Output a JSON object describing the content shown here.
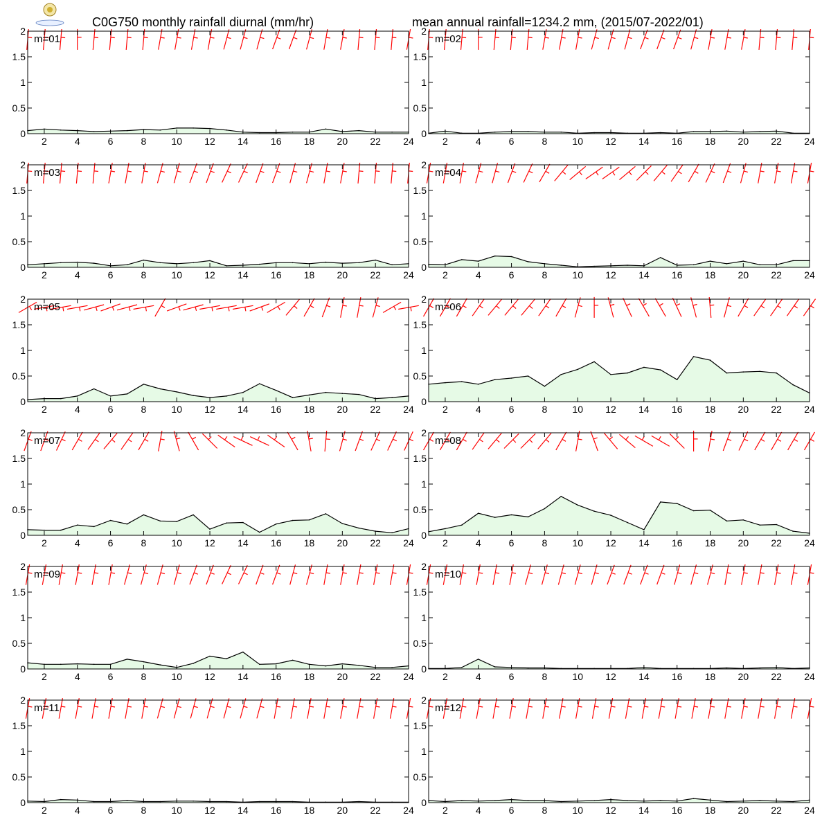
{
  "header": {
    "title_left": "C0G750 monthly rainfall diurnal (mm/hr)",
    "title_right": "mean annual rainfall=1234.2 mm, (2015/07-2022/01)"
  },
  "colors": {
    "fill": "#e6fae6",
    "line": "#000000",
    "wind": "#ff0000",
    "frame": "#000000"
  },
  "chart_data": {
    "type": "area",
    "layout": "6 rows x 2 columns of monthly panels",
    "x": [
      1,
      2,
      3,
      4,
      5,
      6,
      7,
      8,
      9,
      10,
      11,
      12,
      13,
      14,
      15,
      16,
      17,
      18,
      19,
      20,
      21,
      22,
      23,
      24
    ],
    "x_ticks": [
      2,
      4,
      6,
      8,
      10,
      12,
      14,
      16,
      18,
      20,
      22,
      24
    ],
    "y_ticks": [
      0,
      0.5,
      1,
      1.5,
      2
    ],
    "y_tick_labels": [
      "0",
      "0.5",
      "1",
      "1.5",
      "2"
    ],
    "xlim": [
      1,
      24
    ],
    "ylim": [
      0,
      2
    ],
    "grid": false,
    "panels": [
      {
        "label": "m=01",
        "values": [
          0.06,
          0.09,
          0.07,
          0.06,
          0.04,
          0.05,
          0.06,
          0.08,
          0.07,
          0.11,
          0.11,
          0.1,
          0.07,
          0.03,
          0.02,
          0.02,
          0.03,
          0.03,
          0.09,
          0.04,
          0.06,
          0.03,
          0.03,
          0.03
        ],
        "wind_angles": [
          -5,
          -5,
          -5,
          0,
          -5,
          -5,
          -5,
          -5,
          -10,
          -10,
          -10,
          -10,
          -15,
          -15,
          -15,
          -20,
          -20,
          -15,
          -10,
          -10,
          -5,
          -5,
          -5,
          -10
        ]
      },
      {
        "label": "m=02",
        "values": [
          0.01,
          0.05,
          0.01,
          0.01,
          0.03,
          0.04,
          0.04,
          0.03,
          0.03,
          0.01,
          0.02,
          0.02,
          0.01,
          0.01,
          0.02,
          0.01,
          0.04,
          0.04,
          0.05,
          0.03,
          0.04,
          0.05,
          0.01,
          0.01
        ],
        "wind_angles": [
          -5,
          -5,
          -5,
          0,
          -5,
          -5,
          -5,
          -10,
          -10,
          -10,
          -15,
          -15,
          -15,
          -20,
          -20,
          -20,
          -15,
          -10,
          -10,
          -10,
          -5,
          -5,
          -5,
          -5
        ]
      },
      {
        "label": "m=03",
        "values": [
          0.05,
          0.07,
          0.09,
          0.1,
          0.08,
          0.03,
          0.05,
          0.14,
          0.09,
          0.07,
          0.09,
          0.13,
          0.03,
          0.04,
          0.06,
          0.09,
          0.09,
          0.07,
          0.1,
          0.08,
          0.09,
          0.14,
          0.05,
          0.07
        ],
        "wind_angles": [
          -5,
          -5,
          -5,
          -5,
          -5,
          -10,
          -10,
          -10,
          -15,
          -15,
          -20,
          -20,
          -25,
          -25,
          -20,
          -20,
          -15,
          -15,
          -10,
          -10,
          -5,
          -5,
          -5,
          -5
        ]
      },
      {
        "label": "m=04",
        "values": [
          0.06,
          0.05,
          0.15,
          0.12,
          0.22,
          0.21,
          0.11,
          0.07,
          0.04,
          0.01,
          0.02,
          0.03,
          0.04,
          0.03,
          0.19,
          0.04,
          0.05,
          0.12,
          0.07,
          0.12,
          0.05,
          0.05,
          0.13,
          0.13
        ],
        "wind_angles": [
          -10,
          -10,
          -10,
          -15,
          -15,
          -20,
          -25,
          -30,
          -40,
          -50,
          -55,
          -55,
          -50,
          -45,
          -40,
          -35,
          -30,
          -25,
          -20,
          -15,
          -10,
          -10,
          -10,
          -10
        ]
      },
      {
        "label": "m=05",
        "values": [
          0.04,
          0.06,
          0.06,
          0.11,
          0.25,
          0.11,
          0.15,
          0.34,
          0.25,
          0.19,
          0.12,
          0.08,
          0.11,
          0.18,
          0.35,
          0.22,
          0.08,
          0.13,
          0.18,
          0.16,
          0.14,
          0.06,
          0.08,
          0.11
        ],
        "wind_angles": [
          -60,
          -80,
          -80,
          -80,
          -75,
          -70,
          -75,
          -80,
          -30,
          -70,
          -75,
          -80,
          -80,
          -80,
          -70,
          -60,
          -40,
          -30,
          -20,
          -10,
          -10,
          -15,
          -60,
          -80
        ]
      },
      {
        "label": "m=06",
        "values": [
          0.34,
          0.37,
          0.39,
          0.34,
          0.43,
          0.46,
          0.5,
          0.3,
          0.53,
          0.63,
          0.78,
          0.53,
          0.56,
          0.67,
          0.62,
          0.43,
          0.88,
          0.81,
          0.56,
          0.58,
          0.59,
          0.56,
          0.33,
          0.17
        ],
        "wind_angles": [
          -30,
          -30,
          -30,
          -35,
          -40,
          -40,
          -40,
          -35,
          -30,
          -15,
          0,
          15,
          25,
          30,
          30,
          25,
          15,
          5,
          -15,
          -30,
          -35,
          -35,
          -35,
          -35
        ]
      },
      {
        "label": "m=07",
        "values": [
          0.11,
          0.1,
          0.1,
          0.2,
          0.17,
          0.29,
          0.22,
          0.4,
          0.28,
          0.27,
          0.4,
          0.12,
          0.24,
          0.25,
          0.06,
          0.22,
          0.29,
          0.3,
          0.42,
          0.23,
          0.14,
          0.08,
          0.05,
          0.13
        ],
        "wind_angles": [
          -20,
          -20,
          -25,
          -30,
          -35,
          -40,
          -35,
          -30,
          -10,
          15,
          30,
          45,
          55,
          65,
          65,
          55,
          30,
          10,
          -5,
          -15,
          -20,
          -25,
          -25,
          -25
        ]
      },
      {
        "label": "m=08",
        "values": [
          0.07,
          0.13,
          0.2,
          0.43,
          0.35,
          0.4,
          0.36,
          0.52,
          0.76,
          0.59,
          0.47,
          0.39,
          0.25,
          0.11,
          0.65,
          0.62,
          0.48,
          0.49,
          0.28,
          0.3,
          0.2,
          0.21,
          0.08,
          0.04
        ],
        "wind_angles": [
          -30,
          -30,
          -30,
          -35,
          -40,
          -45,
          -45,
          -40,
          -30,
          -10,
          20,
          40,
          50,
          60,
          60,
          45,
          0,
          -10,
          -20,
          -25,
          -30,
          -30,
          -30,
          -30
        ]
      },
      {
        "label": "m=09",
        "values": [
          0.12,
          0.09,
          0.09,
          0.1,
          0.09,
          0.09,
          0.19,
          0.14,
          0.08,
          0.03,
          0.11,
          0.25,
          0.2,
          0.33,
          0.09,
          0.1,
          0.17,
          0.09,
          0.06,
          0.1,
          0.07,
          0.03,
          0.03,
          0.06
        ],
        "wind_angles": [
          -10,
          -10,
          -10,
          -10,
          -10,
          -10,
          -15,
          -15,
          -15,
          -15,
          -20,
          -20,
          -25,
          -25,
          -20,
          -20,
          -15,
          -15,
          -10,
          -10,
          -10,
          -10,
          -10,
          -10
        ]
      },
      {
        "label": "m=10",
        "values": [
          0.01,
          0.01,
          0.03,
          0.19,
          0.04,
          0.03,
          0.02,
          0.02,
          0.01,
          0.01,
          0.01,
          0.01,
          0.01,
          0.03,
          0.01,
          0.01,
          0.01,
          0.01,
          0.02,
          0.01,
          0.02,
          0.03,
          0.01,
          0.02
        ],
        "wind_angles": [
          -10,
          -10,
          -10,
          -10,
          -10,
          -10,
          -15,
          -15,
          -15,
          -15,
          -15,
          -20,
          -20,
          -20,
          -20,
          -15,
          -15,
          -15,
          -10,
          -10,
          -10,
          -10,
          -10,
          -10
        ]
      },
      {
        "label": "m=11",
        "values": [
          0.03,
          0.02,
          0.06,
          0.05,
          0.02,
          0.02,
          0.04,
          0.02,
          0.02,
          0.03,
          0.03,
          0.02,
          0.02,
          0.01,
          0.02,
          0.02,
          0.02,
          0.01,
          0.01,
          0.01,
          0.02,
          0.01,
          0.01,
          0.01
        ],
        "wind_angles": [
          -10,
          -10,
          -10,
          -10,
          -10,
          -10,
          -10,
          -10,
          -15,
          -15,
          -15,
          -15,
          -15,
          -15,
          -15,
          -10,
          -10,
          -10,
          -10,
          -10,
          -10,
          -10,
          -10,
          -10
        ]
      },
      {
        "label": "m=12",
        "values": [
          0.04,
          0.02,
          0.04,
          0.03,
          0.04,
          0.06,
          0.04,
          0.04,
          0.02,
          0.03,
          0.04,
          0.06,
          0.04,
          0.03,
          0.04,
          0.03,
          0.08,
          0.05,
          0.02,
          0.03,
          0.04,
          0.03,
          0.02,
          0.05
        ],
        "wind_angles": [
          -10,
          -10,
          -10,
          -10,
          -10,
          -10,
          -10,
          -10,
          -10,
          -10,
          -10,
          -10,
          -10,
          -10,
          -10,
          -10,
          -10,
          -10,
          -10,
          -10,
          -10,
          -10,
          -10,
          -10
        ]
      }
    ]
  }
}
